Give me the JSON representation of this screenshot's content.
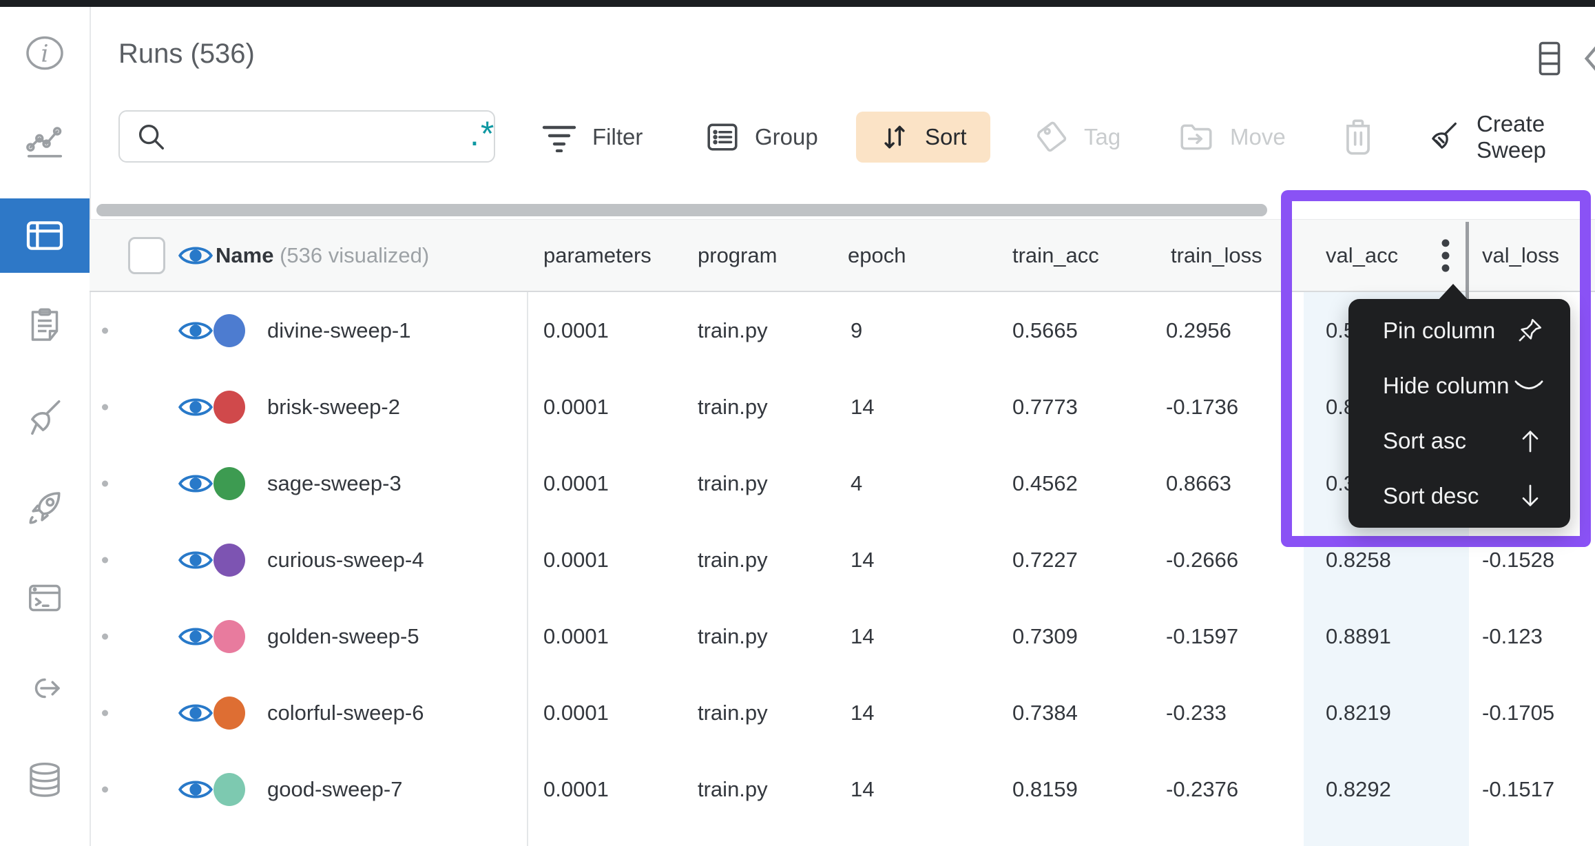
{
  "page": {
    "title": "Runs (536)"
  },
  "toolbar": {
    "search_value": "",
    "regex_glyph": ".*",
    "filter_label": "Filter",
    "group_label": "Group",
    "sort_label": "Sort",
    "tag_label": "Tag",
    "move_label": "Move",
    "create_sweep_label": "Create Sweep"
  },
  "sidebar": {
    "items": [
      {
        "icon": "info-icon",
        "active": false
      },
      {
        "icon": "charts-icon",
        "active": false
      },
      {
        "icon": "table-icon",
        "active": true
      },
      {
        "icon": "notes-icon",
        "active": false
      },
      {
        "icon": "sweeps-broom-icon",
        "active": false
      },
      {
        "icon": "launch-rocket-icon",
        "active": false
      },
      {
        "icon": "terminal-icon",
        "active": false
      },
      {
        "icon": "link-out-icon",
        "active": false
      },
      {
        "icon": "database-icon",
        "active": false
      }
    ]
  },
  "table": {
    "name_header": "Name",
    "name_badge": "(536 visualized)",
    "columns": {
      "parameters": "parameters",
      "program": "program",
      "epoch": "epoch",
      "train_acc": "train_acc",
      "train_loss": "train_loss",
      "val_acc": "val_acc",
      "val_loss": "val_loss"
    },
    "rows": [
      {
        "name": "divine-sweep-1",
        "color": "#4d7cd0",
        "parameters": "0.0001",
        "program": "train.py",
        "epoch": "9",
        "train_acc": "0.5665",
        "train_loss": "0.2956",
        "val_acc": "0.5",
        "val_loss": ""
      },
      {
        "name": "brisk-sweep-2",
        "color": "#d0494b",
        "parameters": "0.0001",
        "program": "train.py",
        "epoch": "14",
        "train_acc": "0.7773",
        "train_loss": "-0.1736",
        "val_acc": "0.8",
        "val_loss": ""
      },
      {
        "name": "sage-sweep-3",
        "color": "#3d9b51",
        "parameters": "0.0001",
        "program": "train.py",
        "epoch": "4",
        "train_acc": "0.4562",
        "train_loss": "0.8663",
        "val_acc": "0.3",
        "val_loss": ""
      },
      {
        "name": "curious-sweep-4",
        "color": "#7d54b2",
        "parameters": "0.0001",
        "program": "train.py",
        "epoch": "14",
        "train_acc": "0.7227",
        "train_loss": "-0.2666",
        "val_acc": "0.8258",
        "val_loss": "-0.1528"
      },
      {
        "name": "golden-sweep-5",
        "color": "#e87b9e",
        "parameters": "0.0001",
        "program": "train.py",
        "epoch": "14",
        "train_acc": "0.7309",
        "train_loss": "-0.1597",
        "val_acc": "0.8891",
        "val_loss": "-0.123"
      },
      {
        "name": "colorful-sweep-6",
        "color": "#de6e33",
        "parameters": "0.0001",
        "program": "train.py",
        "epoch": "14",
        "train_acc": "0.7384",
        "train_loss": "-0.233",
        "val_acc": "0.8219",
        "val_loss": "-0.1705"
      },
      {
        "name": "good-sweep-7",
        "color": "#7dc9b0",
        "parameters": "0.0001",
        "program": "train.py",
        "epoch": "14",
        "train_acc": "0.8159",
        "train_loss": "-0.2376",
        "val_acc": "0.8292",
        "val_loss": "-0.1517"
      }
    ]
  },
  "column_menu": {
    "items": [
      {
        "label": "Pin column",
        "icon": "pin-icon"
      },
      {
        "label": "Hide column",
        "icon": "eye-closed-icon"
      },
      {
        "label": "Sort asc",
        "icon": "arrow-up-icon"
      },
      {
        "label": "Sort desc",
        "icon": "arrow-down-icon"
      }
    ]
  },
  "colors": {
    "highlight_purple": "#8a52f5",
    "active_blue": "#2e78c7",
    "sort_button_bg": "#fbe3c6",
    "regex_teal": "#0f98a2",
    "menu_bg": "#1e1f21",
    "val_acc_column_tint": "#eff6fb"
  }
}
